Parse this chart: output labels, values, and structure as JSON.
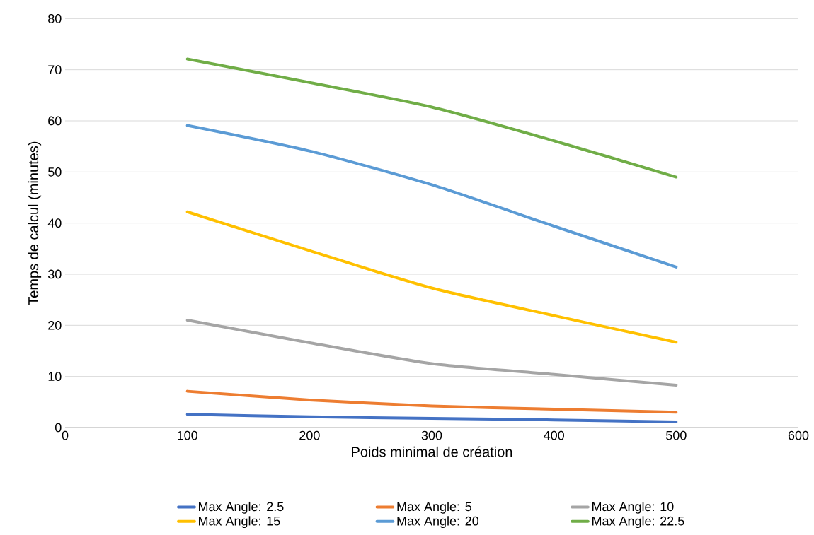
{
  "chart_data": {
    "type": "line",
    "xlabel": "Poids minimal de création",
    "ylabel": "Temps de calcul (minutes)",
    "x": [
      100,
      200,
      300,
      400,
      500
    ],
    "series": [
      {
        "name": "Max Angle: 2.5",
        "color": "#4472c4",
        "values": [
          2.6,
          2.1,
          1.8,
          1.5,
          1.1
        ]
      },
      {
        "name": "Max Angle: 5",
        "color": "#ed7d31",
        "values": [
          7.1,
          5.4,
          4.2,
          3.6,
          3.0
        ]
      },
      {
        "name": "Max Angle: 10",
        "color": "#a5a5a5",
        "values": [
          21.0,
          16.6,
          12.5,
          10.4,
          8.3
        ]
      },
      {
        "name": "Max Angle: 15",
        "color": "#ffc000",
        "values": [
          42.2,
          34.6,
          27.3,
          21.9,
          16.7
        ]
      },
      {
        "name": "Max Angle: 20",
        "color": "#5b9bd5",
        "values": [
          59.1,
          54.1,
          47.5,
          39.4,
          31.4
        ]
      },
      {
        "name": "Max Angle: 22.5",
        "color": "#70ad47",
        "values": [
          72.1,
          67.5,
          62.7,
          56.1,
          49.0
        ]
      }
    ],
    "xlim": [
      0,
      600
    ],
    "xticks": [
      0,
      100,
      200,
      300,
      400,
      500,
      600
    ],
    "ylim": [
      0,
      80
    ],
    "yticks": [
      0,
      10,
      20,
      30,
      40,
      50,
      60,
      70,
      80
    ],
    "grid": "y",
    "legend": "bottom",
    "marker": "none",
    "line_style": "solid"
  }
}
